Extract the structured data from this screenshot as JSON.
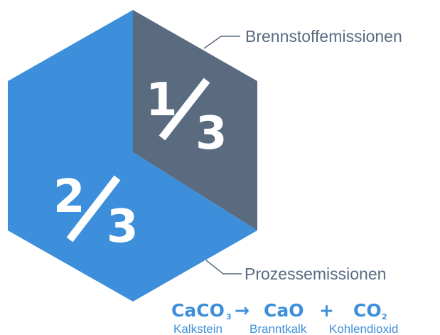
{
  "colors": {
    "process": "#3d8fdb",
    "fuel": "#5a6b80",
    "equation": "#3d8fdb",
    "callout": "#5a6b80"
  },
  "diagram": {
    "fuel_segment": {
      "fraction": "1/3",
      "numerator": "1",
      "denominator": "3",
      "label": "Brennstoffemissionen"
    },
    "process_segment": {
      "fraction": "2/3",
      "numerator": "2",
      "denominator": "3",
      "label": "Prozessemissionen"
    }
  },
  "equation": {
    "terms": [
      {
        "formula": "CaCO",
        "subscript": "3",
        "name": "Kalkstein"
      },
      {
        "formula": "CaO",
        "subscript": "",
        "name": "Branntkalk"
      },
      {
        "formula": "CO",
        "subscript": "2",
        "name": "Kohlendioxid"
      }
    ],
    "arrow": "→",
    "plus": "+"
  }
}
